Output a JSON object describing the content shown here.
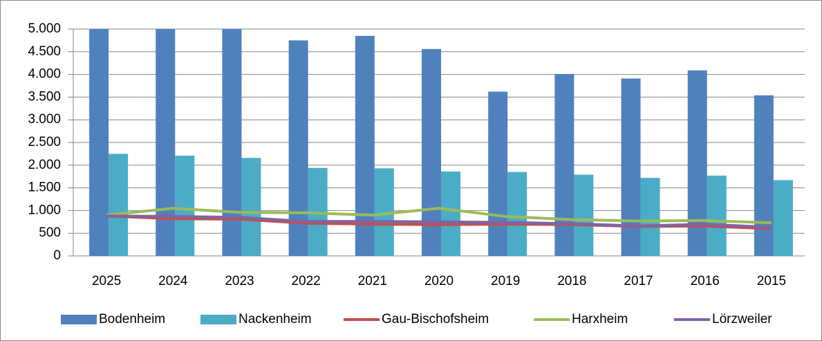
{
  "chart_data": {
    "type": "bar",
    "categories": [
      "2025",
      "2024",
      "2023",
      "2022",
      "2021",
      "2020",
      "2019",
      "2018",
      "2017",
      "2016",
      "2015"
    ],
    "series": [
      {
        "name": "Bodenheim",
        "type": "bar",
        "color": "#4f81bd",
        "values": [
          5100,
          5100,
          5100,
          4750,
          4850,
          4560,
          3620,
          4010,
          3910,
          4090,
          3540
        ]
      },
      {
        "name": "Nackenheim",
        "type": "bar",
        "color": "#4bacc6",
        "values": [
          2250,
          2210,
          2160,
          1940,
          1930,
          1860,
          1850,
          1790,
          1720,
          1770,
          1670
        ]
      },
      {
        "name": "Gau-Bischofsheim",
        "type": "line",
        "color": "#c0504d",
        "values": [
          880,
          820,
          810,
          720,
          700,
          690,
          700,
          690,
          650,
          660,
          600
        ]
      },
      {
        "name": "Harxheim",
        "type": "line",
        "color": "#9bbb59",
        "values": [
          900,
          1050,
          960,
          950,
          900,
          1050,
          870,
          800,
          770,
          780,
          730
        ]
      },
      {
        "name": "Lörzweiler",
        "type": "line",
        "color": "#8064a2",
        "values": [
          880,
          870,
          850,
          760,
          760,
          750,
          740,
          710,
          660,
          700,
          630
        ]
      }
    ],
    "ylim": [
      0,
      5000
    ],
    "yticks": [
      0,
      {
        "value": 500,
        "label": "500"
      },
      {
        "value": 1000,
        "label": "1.000"
      },
      {
        "value": 1500,
        "label": "1.500"
      },
      {
        "value": 2000,
        "label": "2.000"
      },
      {
        "value": 2500,
        "label": "2.500"
      },
      {
        "value": 3000,
        "label": "3.000"
      },
      {
        "value": 3500,
        "label": "3.500"
      },
      {
        "value": 4000,
        "label": "4.000"
      },
      {
        "value": 4500,
        "label": "4.500"
      },
      {
        "value": 5000,
        "label": "5.000"
      }
    ],
    "grid": true,
    "legend": "bottom"
  }
}
